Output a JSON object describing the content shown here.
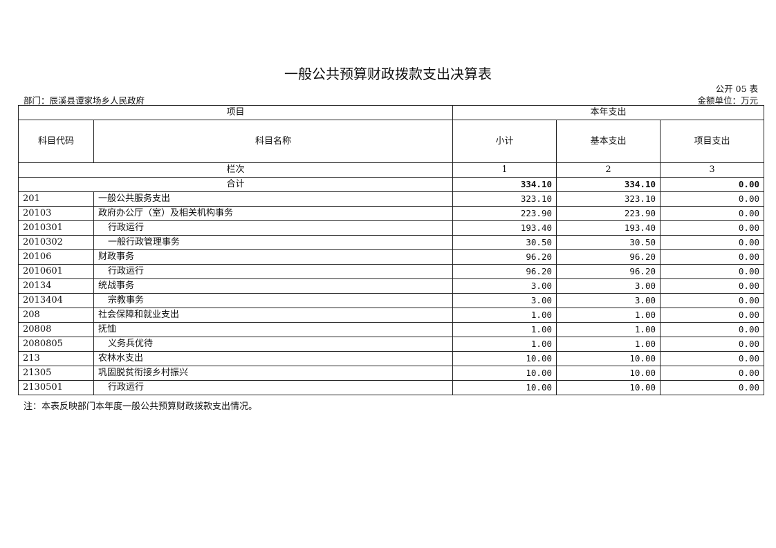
{
  "title": "一般公共预算财政拨款支出决算表",
  "table_no": "公开 05 表",
  "department": "部门：辰溪县谭家场乡人民政府",
  "unit": "金额单位：万元",
  "headers": {
    "project": "项目",
    "current_year": "本年支出",
    "code": "科目代码",
    "name": "科目名称",
    "subtotal": "小计",
    "basic": "基本支出",
    "project_exp": "项目支出",
    "column_index": "栏次",
    "col1": "1",
    "col2": "2",
    "col3": "3",
    "total": "合计"
  },
  "totals": {
    "subtotal": "334.10",
    "basic": "334.10",
    "project": "0.00"
  },
  "rows": [
    {
      "code": "201",
      "name": "一般公共服务支出",
      "level": 0,
      "subtotal": "323.10",
      "basic": "323.10",
      "project": "0.00"
    },
    {
      "code": "20103",
      "name": "政府办公厅（室）及相关机构事务",
      "level": 0,
      "subtotal": "223.90",
      "basic": "223.90",
      "project": "0.00"
    },
    {
      "code": "2010301",
      "name": "行政运行",
      "level": 1,
      "subtotal": "193.40",
      "basic": "193.40",
      "project": "0.00"
    },
    {
      "code": "2010302",
      "name": "一般行政管理事务",
      "level": 1,
      "subtotal": "30.50",
      "basic": "30.50",
      "project": "0.00"
    },
    {
      "code": "20106",
      "name": "财政事务",
      "level": 0,
      "subtotal": "96.20",
      "basic": "96.20",
      "project": "0.00"
    },
    {
      "code": "2010601",
      "name": "行政运行",
      "level": 1,
      "subtotal": "96.20",
      "basic": "96.20",
      "project": "0.00"
    },
    {
      "code": "20134",
      "name": "统战事务",
      "level": 0,
      "subtotal": "3.00",
      "basic": "3.00",
      "project": "0.00"
    },
    {
      "code": "2013404",
      "name": "宗教事务",
      "level": 1,
      "subtotal": "3.00",
      "basic": "3.00",
      "project": "0.00"
    },
    {
      "code": "208",
      "name": "社会保障和就业支出",
      "level": 0,
      "subtotal": "1.00",
      "basic": "1.00",
      "project": "0.00"
    },
    {
      "code": "20808",
      "name": "抚恤",
      "level": 0,
      "subtotal": "1.00",
      "basic": "1.00",
      "project": "0.00"
    },
    {
      "code": "2080805",
      "name": "义务兵优待",
      "level": 1,
      "subtotal": "1.00",
      "basic": "1.00",
      "project": "0.00"
    },
    {
      "code": "213",
      "name": "农林水支出",
      "level": 0,
      "subtotal": "10.00",
      "basic": "10.00",
      "project": "0.00"
    },
    {
      "code": "21305",
      "name": "巩固脱贫衔接乡村振兴",
      "level": 0,
      "subtotal": "10.00",
      "basic": "10.00",
      "project": "0.00"
    },
    {
      "code": "2130501",
      "name": "行政运行",
      "level": 1,
      "subtotal": "10.00",
      "basic": "10.00",
      "project": "0.00"
    }
  ],
  "note": "注：本表反映部门本年度一般公共预算财政拨款支出情况。"
}
